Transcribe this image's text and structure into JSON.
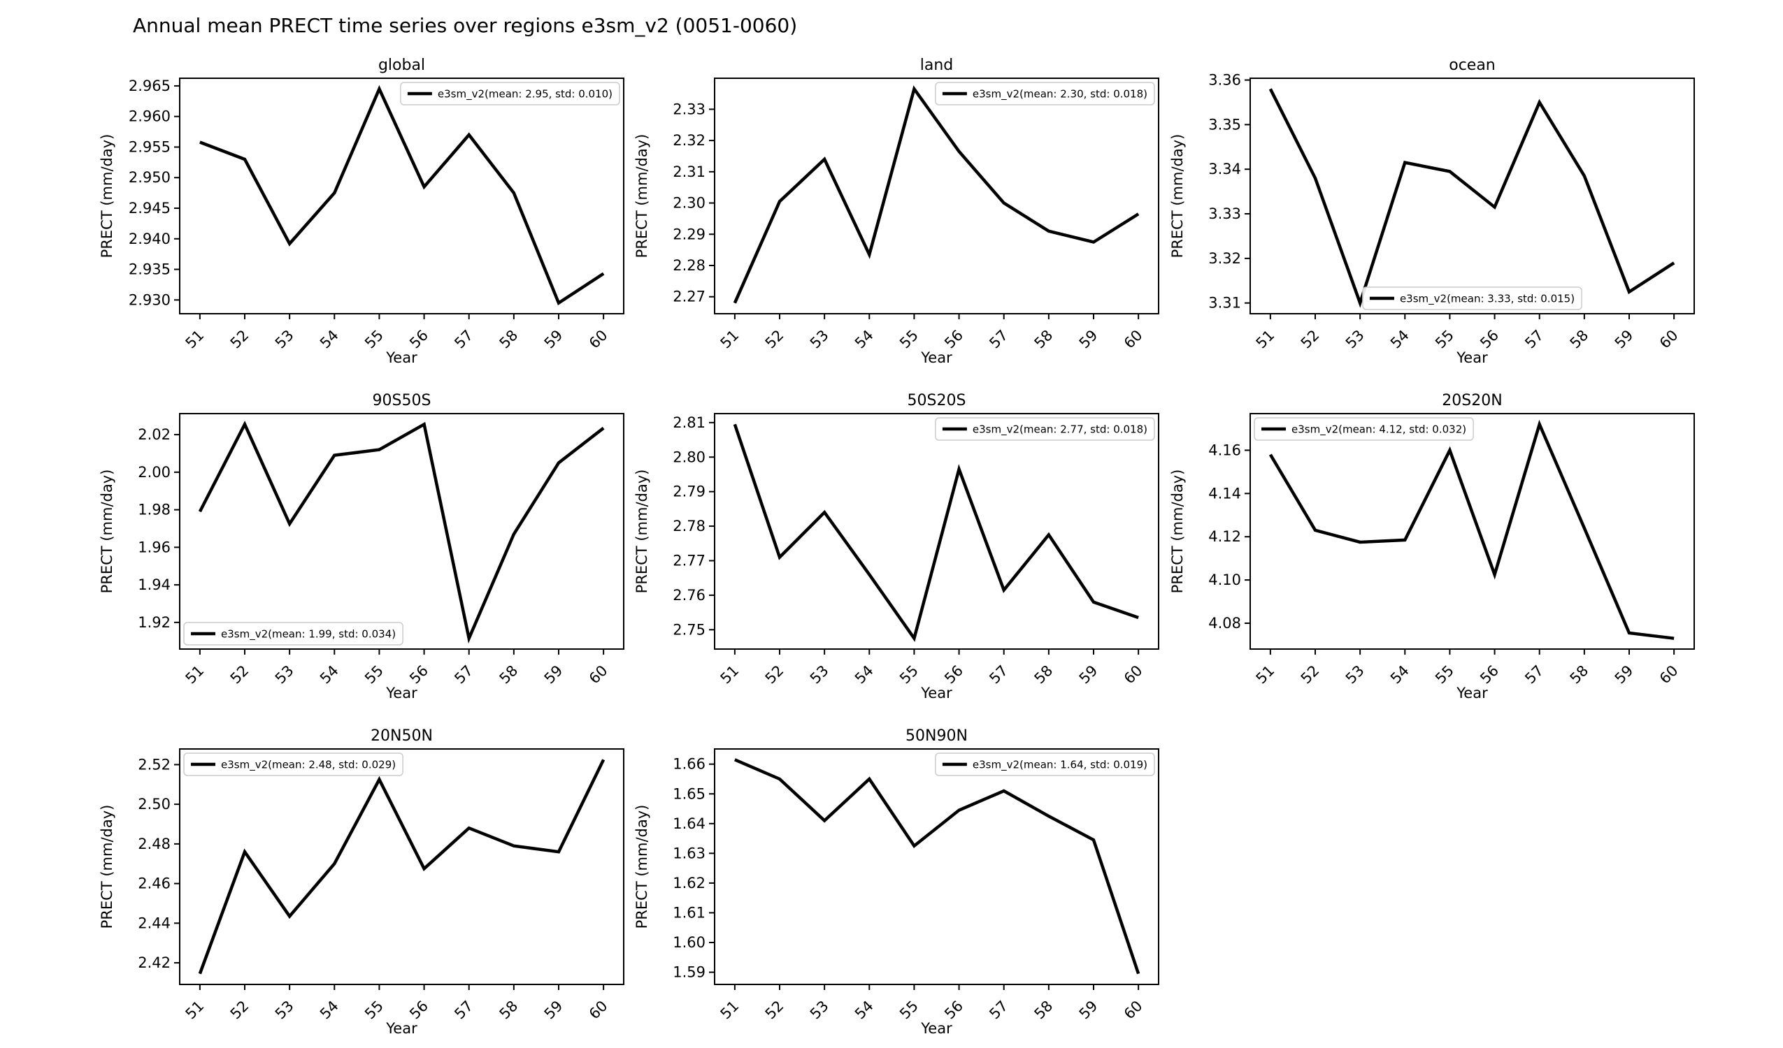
{
  "title": "Annual mean PRECT time series over regions e3sm_v2 (0051-0060)",
  "series_name": "e3sm_v2",
  "colors": {
    "line": "#000000",
    "axes": "#000000",
    "legend_border": "#cccccc",
    "background": "#ffffff"
  },
  "chart_data": [
    {
      "type": "line",
      "title": "global",
      "xlabel": "Year",
      "ylabel": "PRECT (mm/day)",
      "x": [
        51,
        52,
        53,
        54,
        55,
        56,
        57,
        58,
        59,
        60
      ],
      "series": [
        {
          "name": "e3sm_v2",
          "values": [
            2.9558,
            2.953,
            2.9392,
            2.9475,
            2.9645,
            2.9485,
            2.957,
            2.9475,
            2.9295,
            2.9343
          ]
        }
      ],
      "legend_label": "e3sm_v2(mean: 2.95, std: 0.010)",
      "legend_loc": "upper-right",
      "legend_position": "upper right",
      "xlim": [
        50.55,
        60.45
      ],
      "ylim": [
        2.92775,
        2.96625
      ],
      "yticks": [
        2.93,
        2.935,
        2.94,
        2.945,
        2.95,
        2.955,
        2.96,
        2.965
      ],
      "ytick_decimals": 3,
      "grid": false
    },
    {
      "type": "line",
      "title": "land",
      "xlabel": "Year",
      "ylabel": "PRECT (mm/day)",
      "x": [
        51,
        52,
        53,
        54,
        55,
        56,
        57,
        58,
        59,
        60
      ],
      "series": [
        {
          "name": "e3sm_v2",
          "values": [
            2.268,
            2.3005,
            2.314,
            2.2835,
            2.3365,
            2.3165,
            2.3,
            2.291,
            2.2875,
            2.2965
          ]
        }
      ],
      "legend_label": "e3sm_v2(mean: 2.30, std: 0.018)",
      "legend_loc": "upper-right",
      "legend_position": "upper right",
      "xlim": [
        50.55,
        60.45
      ],
      "ylim": [
        2.264575,
        2.339925
      ],
      "yticks": [
        2.27,
        2.28,
        2.29,
        2.3,
        2.31,
        2.32,
        2.33
      ],
      "ytick_decimals": 2,
      "grid": false
    },
    {
      "type": "line",
      "title": "ocean",
      "xlabel": "Year",
      "ylabel": "PRECT (mm/day)",
      "x": [
        51,
        52,
        53,
        54,
        55,
        56,
        57,
        58,
        59,
        60
      ],
      "series": [
        {
          "name": "e3sm_v2",
          "values": [
            3.358,
            3.338,
            3.31,
            3.3415,
            3.3395,
            3.3315,
            3.355,
            3.3385,
            3.3125,
            3.319
          ]
        }
      ],
      "legend_label": "e3sm_v2(mean: 3.33, std: 0.015)",
      "legend_loc": "lower-center",
      "legend_position": "lower center",
      "xlim": [
        50.55,
        60.45
      ],
      "ylim": [
        3.3076,
        3.3604
      ],
      "yticks": [
        3.31,
        3.32,
        3.33,
        3.34,
        3.35,
        3.36
      ],
      "ytick_decimals": 2,
      "grid": false
    },
    {
      "type": "line",
      "title": "90S50S",
      "xlabel": "Year",
      "ylabel": "PRECT (mm/day)",
      "x": [
        51,
        52,
        53,
        54,
        55,
        56,
        57,
        58,
        59,
        60
      ],
      "series": [
        {
          "name": "e3sm_v2",
          "values": [
            1.979,
            2.0255,
            1.9725,
            2.009,
            2.012,
            2.0255,
            1.9115,
            1.967,
            2.005,
            2.0235
          ]
        }
      ],
      "legend_label": "e3sm_v2(mean: 1.99, std: 0.034)",
      "legend_loc": "lower-left",
      "legend_position": "lower left",
      "xlim": [
        50.55,
        60.45
      ],
      "ylim": [
        1.9058,
        2.0312
      ],
      "yticks": [
        1.92,
        1.94,
        1.96,
        1.98,
        2.0,
        2.02
      ],
      "ytick_decimals": 2,
      "grid": false
    },
    {
      "type": "line",
      "title": "50S20S",
      "xlabel": "Year",
      "ylabel": "PRECT (mm/day)",
      "x": [
        51,
        52,
        53,
        54,
        55,
        56,
        57,
        58,
        59,
        60
      ],
      "series": [
        {
          "name": "e3sm_v2",
          "values": [
            2.8095,
            2.771,
            2.784,
            2.766,
            2.7475,
            2.7965,
            2.7615,
            2.7775,
            2.758,
            2.7535
          ]
        }
      ],
      "legend_label": "e3sm_v2(mean: 2.77, std: 0.018)",
      "legend_loc": "upper-right",
      "legend_position": "upper right",
      "xlim": [
        50.55,
        60.45
      ],
      "ylim": [
        2.7444,
        2.8126
      ],
      "yticks": [
        2.75,
        2.76,
        2.77,
        2.78,
        2.79,
        2.8,
        2.81
      ],
      "ytick_decimals": 2,
      "grid": false
    },
    {
      "type": "line",
      "title": "20S20N",
      "xlabel": "Year",
      "ylabel": "PRECT (mm/day)",
      "x": [
        51,
        52,
        53,
        54,
        55,
        56,
        57,
        58,
        59,
        60
      ],
      "series": [
        {
          "name": "e3sm_v2",
          "values": [
            4.158,
            4.123,
            4.1175,
            4.1185,
            4.16,
            4.1025,
            4.172,
            4.124,
            4.0755,
            4.073
          ]
        }
      ],
      "legend_label": "e3sm_v2(mean: 4.12, std: 0.032)",
      "legend_loc": "upper-left",
      "legend_position": "upper left",
      "xlim": [
        50.55,
        60.45
      ],
      "ylim": [
        4.06805,
        4.17695
      ],
      "yticks": [
        4.08,
        4.1,
        4.12,
        4.14,
        4.16
      ],
      "ytick_decimals": 2,
      "grid": false
    },
    {
      "type": "line",
      "title": "20N50N",
      "xlabel": "Year",
      "ylabel": "PRECT (mm/day)",
      "x": [
        51,
        52,
        53,
        54,
        55,
        56,
        57,
        58,
        59,
        60
      ],
      "series": [
        {
          "name": "e3sm_v2",
          "values": [
            2.4145,
            2.476,
            2.4435,
            2.47,
            2.5125,
            2.4675,
            2.488,
            2.479,
            2.476,
            2.5225
          ]
        }
      ],
      "legend_label": "e3sm_v2(mean: 2.48, std: 0.029)",
      "legend_loc": "upper-left",
      "legend_position": "upper left",
      "xlim": [
        50.55,
        60.45
      ],
      "ylim": [
        2.4091,
        2.5279
      ],
      "yticks": [
        2.42,
        2.44,
        2.46,
        2.48,
        2.5,
        2.52
      ],
      "ytick_decimals": 2,
      "grid": false
    },
    {
      "type": "line",
      "title": "50N90N",
      "xlabel": "Year",
      "ylabel": "PRECT (mm/day)",
      "x": [
        51,
        52,
        53,
        54,
        55,
        56,
        57,
        58,
        59,
        60
      ],
      "series": [
        {
          "name": "e3sm_v2",
          "values": [
            1.6615,
            1.655,
            1.641,
            1.655,
            1.6325,
            1.6445,
            1.651,
            1.6425,
            1.6345,
            1.5895
          ]
        }
      ],
      "legend_label": "e3sm_v2(mean: 1.64, std: 0.019)",
      "legend_loc": "upper-right",
      "legend_position": "upper right",
      "xlim": [
        50.55,
        60.45
      ],
      "ylim": [
        1.5859,
        1.6651
      ],
      "yticks": [
        1.59,
        1.6,
        1.61,
        1.62,
        1.63,
        1.64,
        1.65,
        1.66
      ],
      "ytick_decimals": 2,
      "grid": false
    }
  ]
}
